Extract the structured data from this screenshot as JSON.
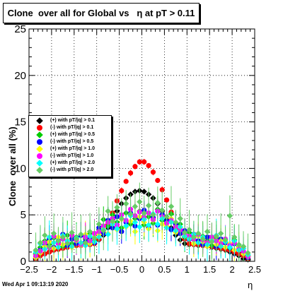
{
  "title": "Clone  over all for Global vs   η at pT > 0.11",
  "footer": "Wed Apr  1 09:13:19 2020",
  "colors": {
    "black": "#000000",
    "red": "#ff0000",
    "green": "#00cc00",
    "blue": "#0000ff",
    "yellow": "#ffff00",
    "magenta": "#ff00ff",
    "cyan": "#00ffff",
    "lightgreen": "#66cc66"
  },
  "chart_data": {
    "type": "scatter",
    "title": "Clone  over all for Global vs   η at pT > 0.11",
    "xlabel": "η",
    "ylabel": "Clone  over all (%)",
    "xlim": [
      -2.5,
      2.5
    ],
    "ylim": [
      0,
      25
    ],
    "grid": true,
    "legend_position": "left",
    "x_ticks": [
      "−2.5",
      "−2",
      "−1.5",
      "−1",
      "−0.5",
      "0",
      "0.5",
      "1",
      "1.5",
      "2",
      "2.5"
    ],
    "y_ticks": [
      "0",
      "5",
      "10",
      "15",
      "20",
      "25"
    ],
    "x": [
      -2.35,
      -2.25,
      -2.15,
      -2.05,
      -1.95,
      -1.85,
      -1.75,
      -1.65,
      -1.55,
      -1.45,
      -1.35,
      -1.25,
      -1.15,
      -1.05,
      -0.95,
      -0.85,
      -0.75,
      -0.65,
      -0.55,
      -0.45,
      -0.35,
      -0.25,
      -0.15,
      -0.05,
      0.05,
      0.15,
      0.25,
      0.35,
      0.45,
      0.55,
      0.65,
      0.75,
      0.85,
      0.95,
      1.05,
      1.15,
      1.25,
      1.35,
      1.45,
      1.55,
      1.65,
      1.75,
      1.85,
      1.95,
      2.05,
      2.15,
      2.25,
      2.35
    ],
    "series": [
      {
        "name": "(+) with pT/|q| > 0.1",
        "color": "#000000",
        "marker": "diamond",
        "values": [
          0.3,
          0.6,
          0.8,
          1.0,
          1.2,
          1.3,
          1.4,
          1.5,
          1.6,
          1.7,
          1.7,
          1.8,
          1.8,
          1.9,
          2.3,
          2.8,
          3.6,
          4.5,
          5.4,
          6.2,
          6.8,
          7.2,
          7.5,
          7.6,
          7.5,
          7.2,
          6.8,
          6.2,
          5.4,
          4.5,
          3.6,
          2.8,
          2.3,
          1.9,
          1.8,
          1.8,
          1.7,
          1.7,
          1.6,
          1.5,
          1.4,
          1.3,
          1.2,
          1.0,
          0.8,
          0.6,
          0.3,
          0.2
        ]
      },
      {
        "name": "(-) with pT/|q| > 0.1",
        "color": "#ff0000",
        "marker": "circle",
        "values": [
          0.3,
          0.6,
          0.8,
          1.0,
          1.2,
          1.3,
          1.4,
          1.5,
          1.6,
          1.7,
          1.7,
          1.8,
          1.8,
          1.9,
          2.4,
          3.0,
          4.0,
          5.2,
          6.5,
          7.6,
          8.6,
          9.5,
          10.2,
          10.7,
          10.7,
          10.3,
          9.6,
          8.7,
          7.7,
          6.6,
          5.3,
          4.1,
          3.0,
          2.4,
          1.9,
          1.8,
          1.8,
          1.7,
          1.7,
          1.6,
          1.5,
          1.4,
          1.3,
          1.2,
          1.0,
          0.8,
          0.6,
          0.3
        ]
      },
      {
        "name": "(+) with pT/|q| > 0.5",
        "color": "#00cc00",
        "marker": "diamond",
        "values": [
          0.8,
          1.5,
          2.2,
          1.8,
          2.5,
          2.0,
          1.6,
          2.8,
          1.9,
          2.6,
          2.0,
          2.4,
          3.0,
          2.2,
          3.4,
          4.5,
          3.8,
          5.0,
          4.2,
          3.6,
          5.2,
          4.0,
          4.6,
          5.4,
          3.9,
          4.8,
          4.1,
          5.6,
          4.4,
          3.7,
          5.1,
          3.5,
          4.0,
          2.6,
          3.1,
          2.3,
          2.0,
          2.7,
          2.2,
          1.7,
          2.5,
          1.8,
          2.1,
          1.4,
          2.3,
          1.6,
          1.0,
          0.6
        ]
      },
      {
        "name": "(-) with pT/|q| > 0.5",
        "color": "#0000ff",
        "marker": "circle",
        "values": [
          0.5,
          1.2,
          1.8,
          2.4,
          1.5,
          2.2,
          2.9,
          1.7,
          2.4,
          1.9,
          2.8,
          2.1,
          2.5,
          2.0,
          3.6,
          3.0,
          4.4,
          3.6,
          4.8,
          3.2,
          4.2,
          5.2,
          3.8,
          4.6,
          5.5,
          3.6,
          4.7,
          3.9,
          5.0,
          4.3,
          3.4,
          4.0,
          3.0,
          3.3,
          2.4,
          2.9,
          2.2,
          1.8,
          2.6,
          2.3,
          1.6,
          2.4,
          2.0,
          1.5,
          1.9,
          1.3,
          0.9,
          0.4
        ]
      },
      {
        "name": "(+) with pT/|q| > 1.0",
        "color": "#ffff00",
        "marker": "diamond",
        "values": [
          0.4,
          0.9,
          1.6,
          2.1,
          1.4,
          2.6,
          1.8,
          2.3,
          1.5,
          2.2,
          1.7,
          2.9,
          1.9,
          2.6,
          2.9,
          3.6,
          3.0,
          4.1,
          3.4,
          4.5,
          3.7,
          4.3,
          3.2,
          4.8,
          4.2,
          3.5,
          4.4,
          3.3,
          4.0,
          3.8,
          4.6,
          3.1,
          3.6,
          2.8,
          2.5,
          1.9,
          2.7,
          2.1,
          1.6,
          2.4,
          1.8,
          2.2,
          1.5,
          1.9,
          1.2,
          1.5,
          0.8,
          0.5
        ]
      },
      {
        "name": "(-) with pT/|q| > 1.0",
        "color": "#ff00ff",
        "marker": "circle",
        "values": [
          0.6,
          1.1,
          2.0,
          1.5,
          2.7,
          1.9,
          2.4,
          2.0,
          2.8,
          2.3,
          1.8,
          2.6,
          2.2,
          3.0,
          3.2,
          3.8,
          4.2,
          4.6,
          3.9,
          5.0,
          4.4,
          5.6,
          4.9,
          5.3,
          4.7,
          5.2,
          4.5,
          5.4,
          4.8,
          4.1,
          4.4,
          3.7,
          3.4,
          3.0,
          2.7,
          2.4,
          2.9,
          2.3,
          2.0,
          2.6,
          2.2,
          1.9,
          2.4,
          1.7,
          2.0,
          1.3,
          1.1,
          0.5
        ]
      },
      {
        "name": "(+) with pT/|q| > 2.0",
        "color": "#00ffff",
        "marker": "diamond",
        "values": [
          1.0,
          1.9,
          1.3,
          2.6,
          2.0,
          1.5,
          2.8,
          2.2,
          1.6,
          2.5,
          2.0,
          1.7,
          2.7,
          2.1,
          2.6,
          3.4,
          2.9,
          4.0,
          3.5,
          4.6,
          3.8,
          4.9,
          4.2,
          3.7,
          4.5,
          3.9,
          5.1,
          4.0,
          4.6,
          3.6,
          4.2,
          3.3,
          3.7,
          2.7,
          2.4,
          2.9,
          2.0,
          2.6,
          1.8,
          2.2,
          2.8,
          1.6,
          2.1,
          1.5,
          2.2,
          1.2,
          1.4,
          0.7
        ]
      },
      {
        "name": "(-) with pT/|q| > 2.0",
        "color": "#66cc66",
        "marker": "diamond",
        "values": [
          1.2,
          2.0,
          2.8,
          1.6,
          3.0,
          2.2,
          2.6,
          1.9,
          3.1,
          2.4,
          2.9,
          2.0,
          3.2,
          2.5,
          4.0,
          3.3,
          5.4,
          4.3,
          5.8,
          4.6,
          6.2,
          5.1,
          5.9,
          6.4,
          5.2,
          6.0,
          5.0,
          6.3,
          5.5,
          4.8,
          5.9,
          4.2,
          4.6,
          3.1,
          3.4,
          2.6,
          3.0,
          2.4,
          3.2,
          2.1,
          2.7,
          3.0,
          2.3,
          4.9,
          2.6,
          1.8,
          1.6,
          0.9
        ]
      }
    ]
  }
}
